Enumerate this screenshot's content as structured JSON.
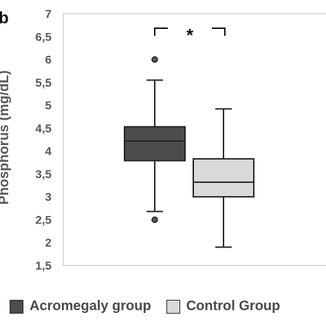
{
  "panel_label": "b",
  "chart_data": {
    "type": "box",
    "ylabel": "Phosphorus (mg/dL)",
    "ylim": [
      1.5,
      7
    ],
    "yticks": [
      1.5,
      2,
      2.5,
      3,
      3.5,
      4,
      4.5,
      5,
      5.5,
      6,
      6.5,
      7
    ],
    "ytick_labels": [
      "1,5",
      "2",
      "2,5",
      "3",
      "3,5",
      "4",
      "4,5",
      "5",
      "5,5",
      "6",
      "6,5",
      "7"
    ],
    "grid": false,
    "legend_position": "bottom",
    "significance": {
      "between": [
        "Acromegaly group",
        "Control Group"
      ],
      "symbol": "*"
    },
    "series": [
      {
        "name": "Acromegaly group",
        "color": "#4d4d4d",
        "min": 2.68,
        "q1": 3.79,
        "median": 4.22,
        "q3": 4.53,
        "max": 5.55,
        "outliers": [
          6.0,
          2.5
        ]
      },
      {
        "name": "Control Group",
        "color": "#d9d9d9",
        "min": 1.9,
        "q1": 3.0,
        "median": 3.32,
        "q3": 3.83,
        "max": 4.92,
        "outliers": []
      }
    ]
  }
}
